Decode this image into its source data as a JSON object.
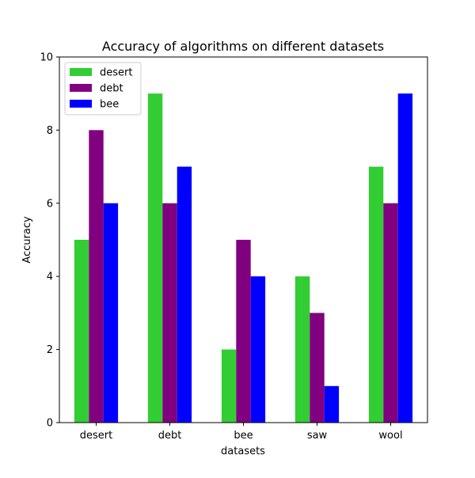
{
  "chart_data": {
    "type": "bar",
    "title": "Accuracy of algorithms on different datasets",
    "xlabel": "datasets",
    "ylabel": "Accuracy",
    "categories": [
      "desert",
      "debt",
      "bee",
      "saw",
      "wool"
    ],
    "ylim": [
      0,
      10
    ],
    "yticks": [
      0,
      2,
      4,
      6,
      8,
      10
    ],
    "grid": false,
    "legend_position": "top-left",
    "series": [
      {
        "name": "desert",
        "color": "#32cd32",
        "values": [
          5,
          9,
          2,
          4,
          7
        ]
      },
      {
        "name": "debt",
        "color": "#800080",
        "values": [
          8,
          6,
          5,
          3,
          6
        ]
      },
      {
        "name": "bee",
        "color": "#0000ff",
        "values": [
          6,
          7,
          4,
          1,
          9
        ]
      }
    ]
  }
}
